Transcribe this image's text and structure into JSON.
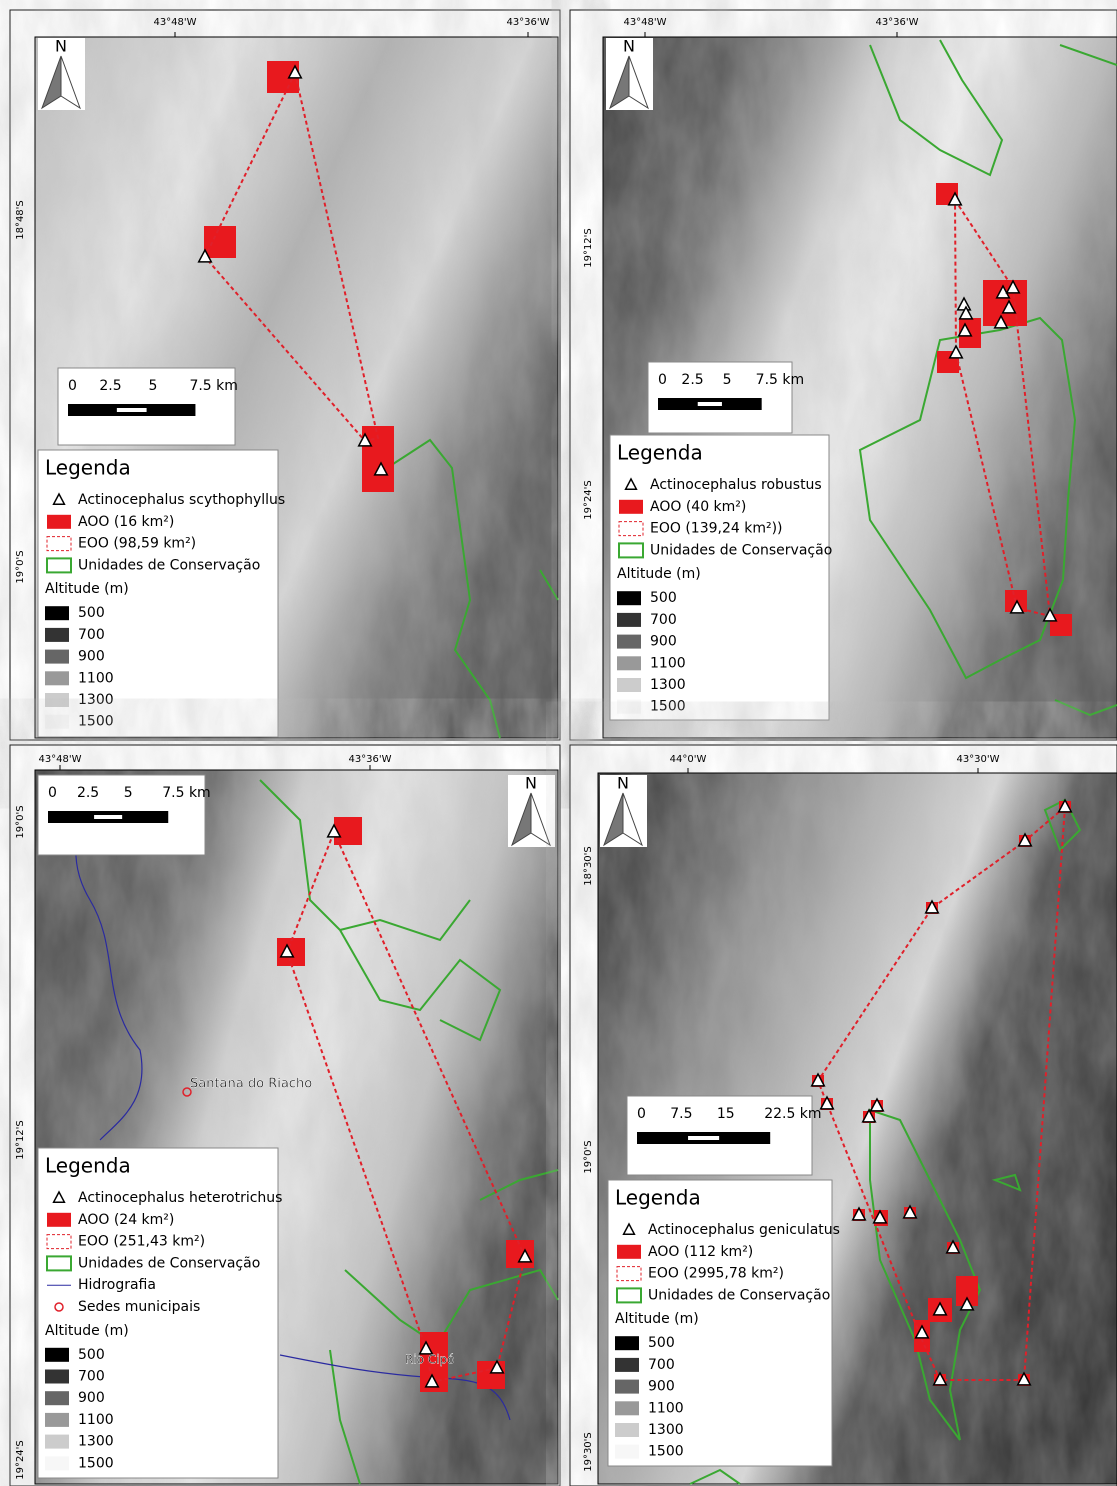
{
  "panels": [
    {
      "top_labels": [
        "43°48'W",
        "43°36'W"
      ],
      "side_labels": [
        "18°48'S",
        "19°0'S"
      ],
      "north": "N",
      "scale": [
        "0",
        "2.5",
        "5",
        "7.5 km"
      ],
      "legend": {
        "title": "Legenda",
        "items": [
          "Actinocephalus scythophyllus",
          "AOO (16 km²)",
          "EOO (98,59 km²)",
          "Unidades de Conservação"
        ],
        "altitude_title": "Altitude (m)",
        "altitude": [
          "500",
          "700",
          "900",
          "1100",
          "1300",
          "1500"
        ]
      }
    },
    {
      "top_labels": [
        "43°48'W",
        "43°36'W"
      ],
      "side_labels": [
        "19°12'S",
        "19°24'S"
      ],
      "north": "N",
      "scale": [
        "0",
        "2.5",
        "5",
        "7.5 km"
      ],
      "legend": {
        "title": "Legenda",
        "items": [
          "Actinocephalus robustus",
          "AOO (40 km²)",
          "EOO (139,24 km²))",
          "Unidades de Conservação"
        ],
        "altitude_title": "Altitude (m)",
        "altitude": [
          "500",
          "700",
          "900",
          "1100",
          "1300",
          "1500"
        ]
      }
    },
    {
      "top_labels": [
        "43°48'W",
        "43°36'W"
      ],
      "side_labels": [
        "19°0'S",
        "19°12'S",
        "19°24'S"
      ],
      "north": "N",
      "scale": [
        "0",
        "2.5",
        "5",
        "7.5 km"
      ],
      "places": [
        "Santana do Riacho",
        "Rio Cipó"
      ],
      "legend": {
        "title": "Legenda",
        "items": [
          "Actinocephalus heterotrichus",
          "AOO (24 km²)",
          "EOO (251,43 km²)",
          "Unidades de Conservação",
          "Hidrografia",
          "Sedes municipais"
        ],
        "altitude_title": "Altitude (m)",
        "altitude": [
          "500",
          "700",
          "900",
          "1100",
          "1300",
          "1500"
        ]
      }
    },
    {
      "top_labels": [
        "44°0'W",
        "43°30'W"
      ],
      "side_labels": [
        "18°30'S",
        "19°0'S",
        "19°30'S"
      ],
      "north": "N",
      "scale": [
        "0",
        "7.5",
        "15",
        "22.5 km"
      ],
      "legend": {
        "title": "Legenda",
        "items": [
          "Actinocephalus geniculatus",
          "AOO (112 km²)",
          "EOO (2995,78 km²)",
          "Unidades de Conservação"
        ],
        "altitude_title": "Altitude (m)",
        "altitude": [
          "500",
          "700",
          "900",
          "1100",
          "1300",
          "1500"
        ]
      }
    }
  ]
}
